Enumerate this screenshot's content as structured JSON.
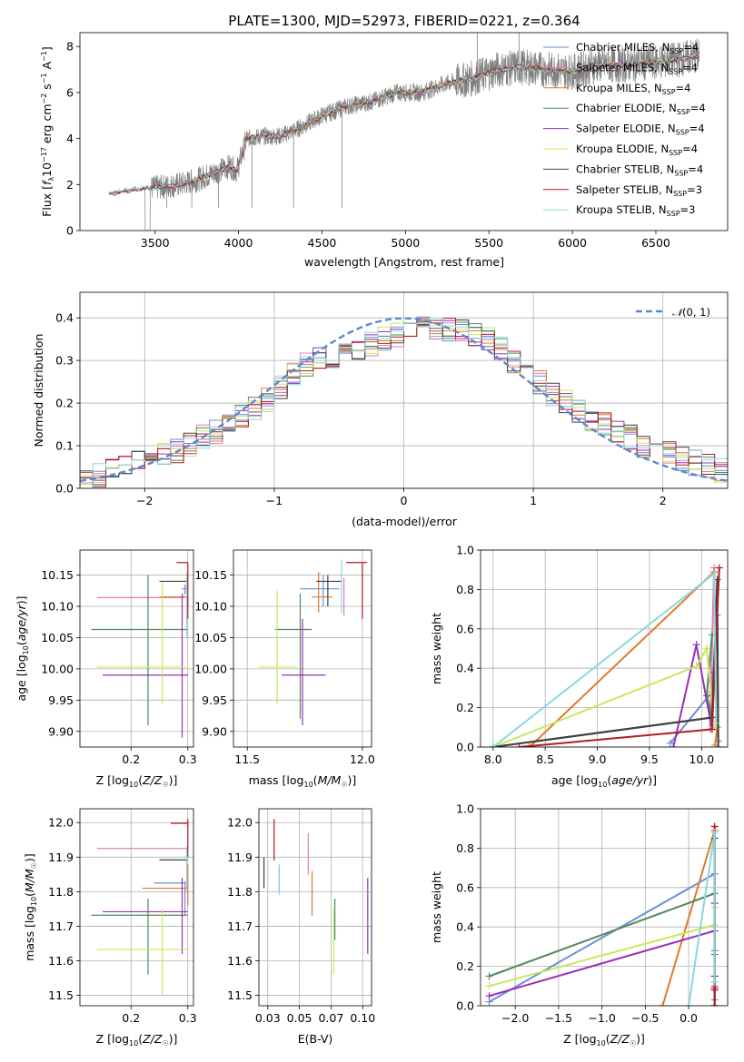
{
  "title": "PLATE=1300, MJD=52973, FIBERID=0221, z=0.364",
  "palette": {
    "chabrier_miles": "#6a8fd6",
    "salpeter_miles": "#e47ab8",
    "kroupa_miles": "#e07a2a",
    "chabrier_elodie": "#4f8a5a",
    "salpeter_elodie": "#9a2fb8",
    "kroupa_elodie": "#c8e85a",
    "chabrier_stelib": "#404040",
    "salpeter_stelib": "#b01c24",
    "kroupa_stelib": "#88d8e0",
    "data_gray": "#808080",
    "normal_dashed": "#5f86d0"
  },
  "chart_data": [
    {
      "id": "spectrum",
      "type": "line",
      "title": "PLATE=1300, MJD=52973, FIBERID=0221, z=0.364",
      "xlabel": "wavelength [Angstrom, rest frame]",
      "ylabel": "Flux [f_λ 10^-17 erg cm^-2 s^-1 A^-1]",
      "xlim": [
        3050,
        6930
      ],
      "ylim": [
        0,
        8.6
      ],
      "xticks": [
        3500,
        4000,
        4500,
        5000,
        5500,
        6000,
        6500
      ],
      "yticks": [
        0,
        2,
        4,
        6,
        8
      ],
      "grid": false,
      "legend_placement": "top-right",
      "continuum_anchors": {
        "x": [
          3225,
          3300,
          3400,
          3550,
          3650,
          3750,
          3850,
          3950,
          3990,
          4050,
          4150,
          4250,
          4350,
          4500,
          4650,
          4800,
          4950,
          5100,
          5250,
          5400,
          5550,
          5700,
          5850,
          6000,
          6150,
          6300,
          6450,
          6600,
          6760
        ],
        "y": [
          1.6,
          1.7,
          1.8,
          1.9,
          2.0,
          2.2,
          2.5,
          2.8,
          2.6,
          4.0,
          4.1,
          4.1,
          4.4,
          5.0,
          5.4,
          5.6,
          6.0,
          6.0,
          6.4,
          6.6,
          7.0,
          7.1,
          7.0,
          6.9,
          7.2,
          7.2,
          7.3,
          7.4,
          7.6
        ]
      },
      "series": [
        {
          "name": "Chabrier MILES, N_SSP=4",
          "color": "#6a8fd6"
        },
        {
          "name": "Salpeter MILES, N_SSP=4",
          "color": "#e47ab8"
        },
        {
          "name": "Kroupa MILES, N_SSP=4",
          "color": "#e07a2a"
        },
        {
          "name": "Chabrier ELODIE, N_SSP=4",
          "color": "#4f8a5a"
        },
        {
          "name": "Salpeter ELODIE, N_SSP=4",
          "color": "#9a2fb8"
        },
        {
          "name": "Kroupa ELODIE, N_SSP=4",
          "color": "#c8e85a"
        },
        {
          "name": "Chabrier STELIB, N_SSP=4",
          "color": "#404040"
        },
        {
          "name": "Salpeter STELIB, N_SSP=3",
          "color": "#b01c24"
        },
        {
          "name": "Kroupa STELIB, N_SSP=3",
          "color": "#88d8e0"
        }
      ]
    },
    {
      "id": "residuals",
      "type": "line",
      "xlabel": "(data-model)/error",
      "ylabel": "Normed distribution",
      "xlim": [
        -2.5,
        2.5
      ],
      "ylim": [
        0,
        0.46
      ],
      "xticks": [
        -2,
        -1,
        0,
        1,
        2
      ],
      "yticks": [
        0.0,
        0.1,
        0.2,
        0.3,
        0.4
      ],
      "grid": true,
      "legend_placement": "top-right",
      "legend": "N(0,1)",
      "bin_edges": [
        -2.5,
        -2.4,
        -2.3,
        -2.2,
        -2.1,
        -2.0,
        -1.9,
        -1.8,
        -1.7,
        -1.6,
        -1.5,
        -1.4,
        -1.3,
        -1.2,
        -1.1,
        -1.0,
        -0.9,
        -0.8,
        -0.7,
        -0.6,
        -0.5,
        -0.4,
        -0.3,
        -0.2,
        -0.1,
        0.0,
        0.1,
        0.2,
        0.3,
        0.4,
        0.5,
        0.6,
        0.7,
        0.8,
        0.9,
        1.0,
        1.1,
        1.2,
        1.3,
        1.4,
        1.5,
        1.6,
        1.7,
        1.8,
        1.9,
        2.0,
        2.1,
        2.2,
        2.3,
        2.4,
        2.5
      ],
      "mean_histogram": [
        0.02,
        0.03,
        0.04,
        0.05,
        0.06,
        0.07,
        0.08,
        0.09,
        0.1,
        0.12,
        0.13,
        0.15,
        0.17,
        0.19,
        0.21,
        0.24,
        0.27,
        0.29,
        0.3,
        0.31,
        0.32,
        0.33,
        0.34,
        0.35,
        0.36,
        0.38,
        0.39,
        0.38,
        0.37,
        0.37,
        0.36,
        0.35,
        0.33,
        0.3,
        0.28,
        0.25,
        0.22,
        0.2,
        0.18,
        0.16,
        0.15,
        0.13,
        0.12,
        0.1,
        0.09,
        0.08,
        0.07,
        0.06,
        0.05,
        0.04
      ],
      "normal_curve": {
        "mean": 0,
        "sigma": 1
      }
    },
    {
      "id": "age_vs_Z",
      "type": "scatter",
      "xlabel": "Z [log10(Z/Z☉)]",
      "ylabel": "age  [log10(age/yr)]",
      "xlim": [
        0.11,
        0.31
      ],
      "ylim": [
        9.875,
        10.19
      ],
      "xticks": [
        0.2,
        0.3
      ],
      "yticks": [
        9.9,
        9.95,
        10.0,
        10.05,
        10.1,
        10.15
      ],
      "grid": true,
      "points": [
        {
          "series": "Chabrier MILES",
          "x": 0.295,
          "xerr": [
            0.3,
            0.29
          ],
          "y": 10.128,
          "yerr": [
            10.12,
            10.135
          ]
        },
        {
          "series": "Salpeter MILES",
          "x": 0.2,
          "xerr": [
            0.14,
            0.295
          ],
          "y": 10.114,
          "yerr": [
            10.114,
            10.114
          ]
        },
        {
          "series": "Kroupa MILES",
          "x": 0.3,
          "xerr": [
            0.25,
            0.3
          ],
          "y": 10.115,
          "yerr": [
            10.1,
            10.15
          ]
        },
        {
          "series": "Chabrier ELODIE",
          "x": 0.23,
          "xerr": [
            0.13,
            0.3
          ],
          "y": 10.063,
          "yerr": [
            9.91,
            10.15
          ]
        },
        {
          "series": "Salpeter ELODIE",
          "x": 0.29,
          "xerr": [
            0.15,
            0.3
          ],
          "y": 9.99,
          "yerr": [
            9.89,
            10.12
          ]
        },
        {
          "series": "Kroupa ELODIE",
          "x": 0.255,
          "xerr": [
            0.14,
            0.3
          ],
          "y": 10.003,
          "yerr": [
            9.945,
            10.14
          ]
        },
        {
          "series": "Chabrier STELIB",
          "x": 0.295,
          "xerr": [
            0.25,
            0.3
          ],
          "y": 10.14,
          "yerr": [
            10.14,
            10.14
          ]
        },
        {
          "series": "Salpeter STELIB",
          "x": 0.3,
          "xerr": [
            0.28,
            0.3
          ],
          "y": 10.17,
          "yerr": [
            10.08,
            10.17
          ]
        },
        {
          "series": "Kroupa STELIB",
          "x": 0.298,
          "xerr": [
            0.29,
            0.3
          ],
          "y": 10.12,
          "yerr": [
            10.05,
            10.155
          ]
        }
      ]
    },
    {
      "id": "age_vs_mass",
      "type": "scatter",
      "xlabel": "mass [log10(M/M☉)]",
      "ylabel": "",
      "xlim": [
        11.44,
        12.04
      ],
      "ylim": [
        9.875,
        10.19
      ],
      "xticks": [
        11.5,
        12.0
      ],
      "yticks": [
        9.9,
        9.95,
        10.0,
        10.05,
        10.1,
        10.15
      ],
      "grid": true,
      "points": [
        {
          "series": "Chabrier MILES",
          "x": 11.83,
          "xerr": [
            11.73,
            11.9
          ],
          "y": 10.128,
          "yerr": [
            10.1,
            10.15
          ]
        },
        {
          "series": "Salpeter MILES",
          "x": 11.92,
          "xerr": [
            11.92,
            11.92
          ],
          "y": 10.12,
          "yerr": [
            10.085,
            10.145
          ]
        },
        {
          "series": "Kroupa MILES",
          "x": 11.81,
          "xerr": [
            11.78,
            11.87
          ],
          "y": 10.115,
          "yerr": [
            10.09,
            10.155
          ]
        },
        {
          "series": "Chabrier ELODIE",
          "x": 11.73,
          "xerr": [
            11.62,
            11.78
          ],
          "y": 10.063,
          "yerr": [
            9.92,
            10.12
          ]
        },
        {
          "series": "Salpeter ELODIE",
          "x": 11.74,
          "xerr": [
            11.65,
            11.84
          ],
          "y": 9.99,
          "yerr": [
            9.91,
            10.08
          ]
        },
        {
          "series": "Kroupa ELODIE",
          "x": 11.63,
          "xerr": [
            11.55,
            11.72
          ],
          "y": 10.003,
          "yerr": [
            9.945,
            10.125
          ]
        },
        {
          "series": "Chabrier STELIB",
          "x": 11.85,
          "xerr": [
            11.8,
            11.91
          ],
          "y": 10.14,
          "yerr": [
            10.1,
            10.15
          ]
        },
        {
          "series": "Salpeter STELIB",
          "x": 12.0,
          "xerr": [
            11.93,
            12.02
          ],
          "y": 10.17,
          "yerr": [
            10.08,
            10.17
          ]
        },
        {
          "series": "Kroupa STELIB",
          "x": 11.91,
          "xerr": [
            11.91,
            11.91
          ],
          "y": 10.14,
          "yerr": [
            10.09,
            10.175
          ]
        }
      ]
    },
    {
      "id": "massweight_vs_age",
      "type": "line",
      "xlabel": "age  [log10(age/yr)]",
      "ylabel": "mass weight",
      "xlim": [
        7.88,
        10.25
      ],
      "ylim": [
        0,
        1.0
      ],
      "xticks": [
        8.0,
        8.5,
        9.0,
        9.5,
        10.0
      ],
      "yticks": [
        0.0,
        0.2,
        0.4,
        0.6,
        0.8,
        1.0
      ],
      "grid": true,
      "series": [
        {
          "name": "Chabrier MILES",
          "x": [
            9.7,
            10.1,
            10.15,
            10.16
          ],
          "y": [
            0.02,
            0.28,
            0.67,
            0.03
          ]
        },
        {
          "name": "Salpeter MILES",
          "x": [
            10.08,
            10.12
          ],
          "y": [
            0.09,
            0.91
          ]
        },
        {
          "name": "Kroupa MILES",
          "x": [
            8.35,
            10.12,
            10.15,
            10.13
          ],
          "y": [
            0.0,
            0.89,
            0.1,
            0.01
          ]
        },
        {
          "name": "Chabrier ELODIE",
          "x": [
            8.0,
            10.1,
            10.05,
            10.1
          ],
          "y": [
            0.0,
            0.15,
            0.26,
            0.57
          ]
        },
        {
          "name": "Salpeter ELODIE",
          "x": [
            9.73,
            9.95,
            10.1,
            10.12
          ],
          "y": [
            0.0,
            0.52,
            0.09,
            0.38
          ]
        },
        {
          "name": "Kroupa ELODIE",
          "x": [
            8.0,
            9.95,
            10.05,
            10.12
          ],
          "y": [
            0.0,
            0.41,
            0.5,
            0.1
          ]
        },
        {
          "name": "Chabrier STELIB",
          "x": [
            8.0,
            10.1,
            10.15,
            10.16
          ],
          "y": [
            0.0,
            0.15,
            0.85,
            0.0
          ]
        },
        {
          "name": "Salpeter STELIB",
          "x": [
            8.25,
            10.1,
            10.17
          ],
          "y": [
            0.0,
            0.09,
            0.91
          ]
        },
        {
          "name": "Kroupa STELIB",
          "x": [
            8.0,
            10.12,
            10.14
          ],
          "y": [
            0.0,
            0.88,
            0.12
          ]
        }
      ]
    },
    {
      "id": "mass_vs_Z",
      "type": "scatter",
      "xlabel": "Z [log10(Z/Z☉)]",
      "ylabel": "mass [log10(M/M☉)]",
      "xlim": [
        0.11,
        0.31
      ],
      "ylim": [
        11.47,
        12.04
      ],
      "xticks": [
        0.2,
        0.3
      ],
      "yticks": [
        11.5,
        11.6,
        11.7,
        11.8,
        11.9,
        12.0
      ],
      "grid": true,
      "points": [
        {
          "series": "Chabrier MILES",
          "x": 0.295,
          "xerr": [
            0.24,
            0.295
          ],
          "y": 11.825,
          "yerr": [
            11.73,
            11.83
          ]
        },
        {
          "series": "Salpeter MILES",
          "x": 0.29,
          "xerr": [
            0.14,
            0.3
          ],
          "y": 11.925,
          "yerr": [
            11.925,
            11.925
          ]
        },
        {
          "series": "Kroupa MILES",
          "x": 0.3,
          "xerr": [
            0.22,
            0.3
          ],
          "y": 11.81,
          "yerr": [
            11.76,
            11.88
          ]
        },
        {
          "series": "Chabrier ELODIE",
          "x": 0.23,
          "xerr": [
            0.13,
            0.3
          ],
          "y": 11.732,
          "yerr": [
            11.56,
            11.78
          ]
        },
        {
          "series": "Salpeter ELODIE",
          "x": 0.29,
          "xerr": [
            0.15,
            0.3
          ],
          "y": 11.742,
          "yerr": [
            11.62,
            11.84
          ]
        },
        {
          "series": "Kroupa ELODIE",
          "x": 0.255,
          "xerr": [
            0.14,
            0.3
          ],
          "y": 11.633,
          "yerr": [
            11.5,
            11.75
          ]
        },
        {
          "series": "Chabrier STELIB",
          "x": 0.295,
          "xerr": [
            0.25,
            0.3
          ],
          "y": 11.892,
          "yerr": [
            11.89,
            11.89
          ]
        },
        {
          "series": "Salpeter STELIB",
          "x": 0.3,
          "xerr": [
            0.27,
            0.3
          ],
          "y": 11.998,
          "yerr": [
            11.9,
            12.01
          ]
        },
        {
          "series": "Kroupa STELIB",
          "x": 0.298,
          "xerr": [
            0.29,
            0.3
          ],
          "y": 11.9,
          "yerr": [
            11.8,
            11.93
          ]
        }
      ]
    },
    {
      "id": "mass_vs_ebv",
      "type": "scatter",
      "xlabel": "E(B-V)",
      "ylabel": "",
      "xlim": [
        0.018,
        0.107
      ],
      "ylim": [
        11.47,
        12.04
      ],
      "xticks": [
        0.025,
        0.05,
        0.075,
        0.1
      ],
      "yticks": [
        11.5,
        11.6,
        11.7,
        11.8,
        11.9,
        12.0
      ],
      "grid": true,
      "points": [
        {
          "series": "Chabrier MILES",
          "x": 0.034,
          "yerr": [
            11.8,
            11.87
          ]
        },
        {
          "series": "Salpeter MILES",
          "x": 0.057,
          "yerr": [
            11.85,
            11.97
          ]
        },
        {
          "series": "Kroupa MILES",
          "x": 0.06,
          "yerr": [
            11.73,
            11.86
          ]
        },
        {
          "series": "Chabrier ELODIE",
          "x": 0.078,
          "yerr": [
            11.66,
            11.78
          ]
        },
        {
          "series": "Salpeter ELODIE",
          "x": 0.104,
          "yerr": [
            11.62,
            11.84
          ]
        },
        {
          "series": "Kroupa ELODIE",
          "x": 0.077,
          "yerr": [
            11.56,
            11.75
          ]
        },
        {
          "series": "Chabrier STELIB",
          "x": 0.022,
          "yerr": [
            11.81,
            11.9
          ]
        },
        {
          "series": "Salpeter STELIB",
          "x": 0.03,
          "yerr": [
            11.89,
            12.01
          ]
        },
        {
          "series": "Kroupa STELIB",
          "x": 0.034,
          "yerr": [
            11.79,
            11.88
          ]
        }
      ]
    },
    {
      "id": "massweight_vs_Z",
      "type": "line",
      "xlabel": "Z [log10(Z/Z☉)]",
      "ylabel": "mass weight",
      "xlim": [
        -2.4,
        0.45
      ],
      "ylim": [
        0,
        1.0
      ],
      "xticks": [
        -2.0,
        -1.5,
        -1.0,
        -0.5,
        0.0
      ],
      "yticks": [
        0.0,
        0.2,
        0.4,
        0.6,
        0.8,
        1.0
      ],
      "grid": true,
      "series": [
        {
          "name": "Chabrier MILES",
          "x": [
            -2.3,
            0.3,
            0.3,
            0.3
          ],
          "y": [
            0.02,
            0.67,
            0.28,
            0.03
          ]
        },
        {
          "name": "Salpeter MILES",
          "x": [
            0.3,
            0.3
          ],
          "y": [
            0.09,
            0.91
          ]
        },
        {
          "name": "Kroupa MILES",
          "x": [
            -0.3,
            0.3,
            0.3
          ],
          "y": [
            0.0,
            0.89,
            0.1
          ]
        },
        {
          "name": "Chabrier ELODIE",
          "x": [
            -2.3,
            0.3,
            0.3,
            0.3
          ],
          "y": [
            0.15,
            0.57,
            0.26,
            0.0
          ]
        },
        {
          "name": "Salpeter ELODIE",
          "x": [
            -2.3,
            0.3,
            0.3,
            0.3
          ],
          "y": [
            0.05,
            0.38,
            0.52,
            0.09
          ]
        },
        {
          "name": "Kroupa ELODIE",
          "x": [
            -2.3,
            0.3,
            0.3,
            0.3
          ],
          "y": [
            0.1,
            0.41,
            0.5,
            0.0
          ]
        },
        {
          "name": "Chabrier STELIB",
          "x": [
            0.3,
            0.3,
            0.3
          ],
          "y": [
            0.15,
            0.85,
            0.0
          ]
        },
        {
          "name": "Salpeter STELIB",
          "x": [
            0.3,
            0.3,
            0.3
          ],
          "y": [
            0.08,
            0.91,
            0.0
          ]
        },
        {
          "name": "Kroupa STELIB",
          "x": [
            0.0,
            0.3,
            0.3
          ],
          "y": [
            0.0,
            0.88,
            0.12
          ]
        }
      ]
    }
  ]
}
